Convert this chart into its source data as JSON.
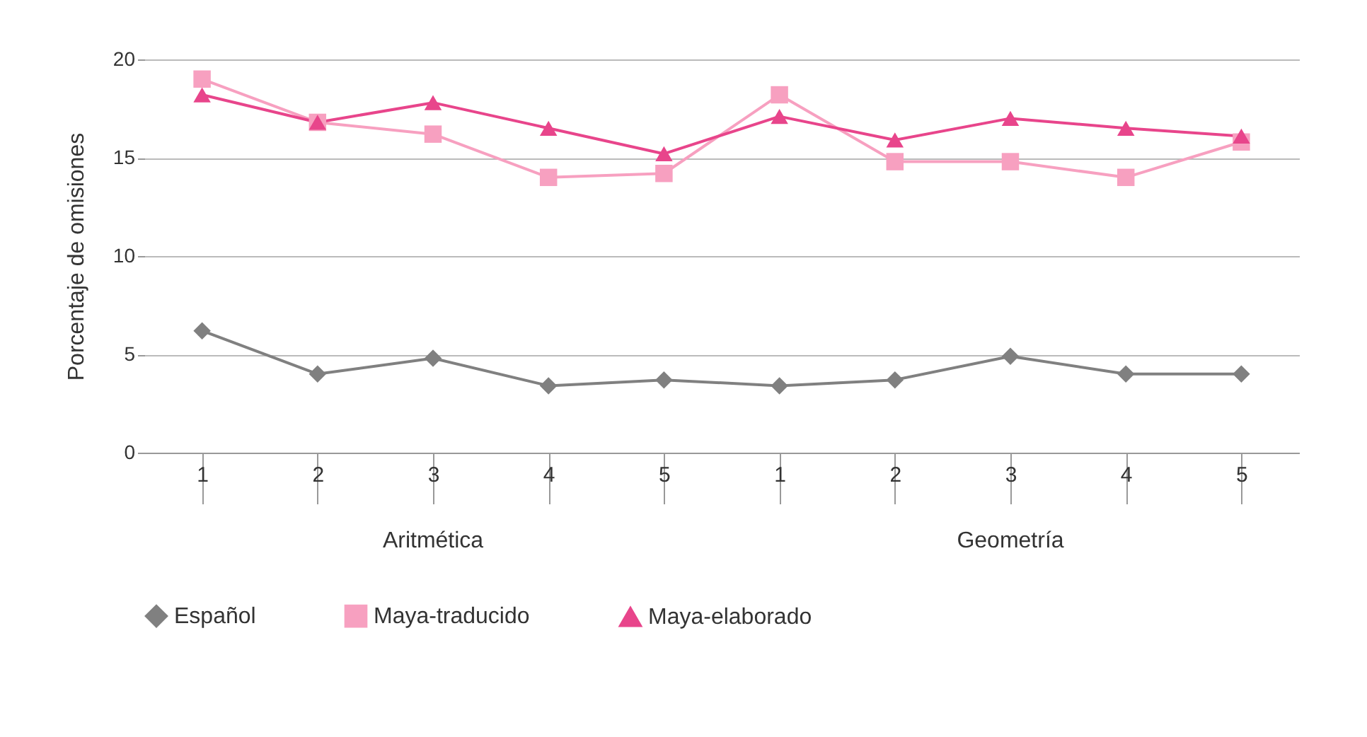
{
  "chart_data": {
    "type": "line",
    "ylabel": "Porcentaje de omisiones",
    "categories": [
      "1",
      "2",
      "3",
      "4",
      "5",
      "1",
      "2",
      "3",
      "4",
      "5"
    ],
    "annotations": [
      "Aritmética",
      "Geometría"
    ],
    "series": [
      {
        "name": "Español",
        "color": "#808080",
        "marker": "diamond",
        "values": [
          6.2,
          4.0,
          4.8,
          3.4,
          3.7,
          3.4,
          3.7,
          4.9,
          4.0,
          4.0
        ]
      },
      {
        "name": "Maya-traducido",
        "color": "#f7a0c0",
        "marker": "square",
        "values": [
          19.0,
          16.8,
          16.2,
          14.0,
          14.2,
          18.2,
          14.8,
          14.8,
          14.0,
          15.8
        ]
      },
      {
        "name": "Maya-elaborado",
        "color": "#e8458b",
        "marker": "triangle",
        "values": [
          18.2,
          16.8,
          17.8,
          16.5,
          15.2,
          17.1,
          15.9,
          17.0,
          16.5,
          16.1
        ]
      }
    ],
    "ylim": [
      0,
      20
    ],
    "yticks": [
      0,
      5,
      10,
      15,
      20
    ],
    "grid": "y",
    "legend": "bottom",
    "line_style": "solid"
  }
}
